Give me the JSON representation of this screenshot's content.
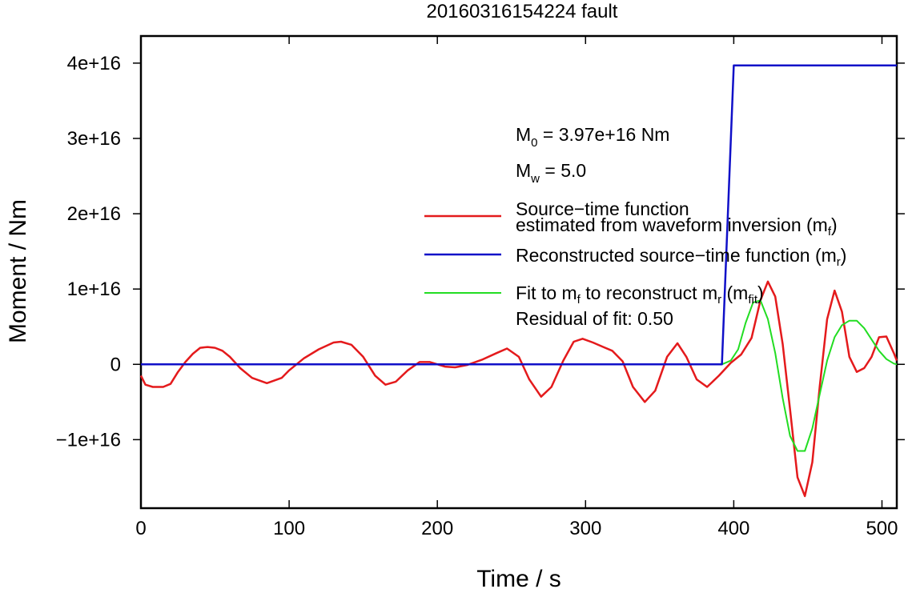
{
  "chart_data": {
    "type": "line",
    "title": "20160316154224 fault",
    "xlabel": "Time / s",
    "ylabel": "Moment / Nm",
    "xlim": [
      0,
      510
    ],
    "ylim": [
      -1.91e+16,
      4.36e+16
    ],
    "x_ticks": [
      0,
      100,
      200,
      300,
      400,
      500
    ],
    "x_tick_labels": [
      "0",
      "100",
      "200",
      "300",
      "400",
      "500"
    ],
    "y_ticks": [
      -1e+16,
      0,
      1e+16,
      2e+16,
      3e+16,
      4e+16
    ],
    "y_tick_labels": [
      "−1e+16",
      "0",
      "1e+16",
      "2e+16",
      "3e+16",
      "4e+16"
    ],
    "grid": false,
    "legend_position": "right",
    "annotations": {
      "m0_main": "M",
      "m0_sub": "0",
      "m0_rest": " = 3.97e+16 Nm",
      "mw_main": "M",
      "mw_sub": "w",
      "mw_rest": " = 5.0",
      "residual": "Residual of fit: 0.50"
    },
    "legend": [
      {
        "color": "#e41a1c",
        "line1": "Source−time function",
        "line2": "estimated from waveform inversion (m",
        "sub": "f",
        "close": ")"
      },
      {
        "color": "#1010c8",
        "line1": "Reconstructed source−time function (m",
        "sub": "r",
        "close": ")"
      },
      {
        "color": "#22dd22",
        "line1": "Fit to m",
        "sub": "f",
        "mid": " to reconstruct m",
        "sub2": "r",
        "mid2": " (m",
        "sub3": "fit",
        "close": ")"
      }
    ],
    "series": [
      {
        "color": "#e41a1c",
        "points": [
          [
            0,
            -1500000000000000.0
          ],
          [
            3,
            -2700000000000000.0
          ],
          [
            8,
            -3000000000000000.0
          ],
          [
            15,
            -3000000000000000.0
          ],
          [
            20,
            -2600000000000000.0
          ],
          [
            25,
            -1000000000000000.0
          ],
          [
            30,
            300000000000000.0
          ],
          [
            35,
            1400000000000000.0
          ],
          [
            40,
            2200000000000000.0
          ],
          [
            45,
            2300000000000000.0
          ],
          [
            50,
            2200000000000000.0
          ],
          [
            55,
            1800000000000000.0
          ],
          [
            60,
            1000000000000000.0
          ],
          [
            67,
            -500000000000000.0
          ],
          [
            75,
            -1800000000000000.0
          ],
          [
            85,
            -2500000000000000.0
          ],
          [
            95,
            -1800000000000000.0
          ],
          [
            100,
            -800000000000000.0
          ],
          [
            110,
            800000000000000.0
          ],
          [
            120,
            2000000000000000.0
          ],
          [
            130,
            2900000000000000.0
          ],
          [
            135,
            3000000000000000.0
          ],
          [
            142,
            2600000000000000.0
          ],
          [
            150,
            1000000000000000.0
          ],
          [
            158,
            -1500000000000000.0
          ],
          [
            165,
            -2700000000000000.0
          ],
          [
            172,
            -2300000000000000.0
          ],
          [
            180,
            -800000000000000.0
          ],
          [
            188,
            300000000000000.0
          ],
          [
            195,
            300000000000000.0
          ],
          [
            205,
            -300000000000000.0
          ],
          [
            212,
            -400000000000000.0
          ],
          [
            220,
            -100000000000000.0
          ],
          [
            230,
            600000000000000.0
          ],
          [
            240,
            1500000000000000.0
          ],
          [
            247,
            2100000000000000.0
          ],
          [
            255,
            1000000000000000.0
          ],
          [
            262,
            -2000000000000000.0
          ],
          [
            270,
            -4300000000000000.0
          ],
          [
            277,
            -3000000000000000.0
          ],
          [
            285,
            500000000000000.0
          ],
          [
            292,
            3000000000000000.0
          ],
          [
            298,
            3400000000000000.0
          ],
          [
            305,
            2900000000000000.0
          ],
          [
            312,
            2300000000000000.0
          ],
          [
            318,
            1800000000000000.0
          ],
          [
            325,
            400000000000000.0
          ],
          [
            332,
            -3000000000000000.0
          ],
          [
            340,
            -5000000000000000.0
          ],
          [
            347,
            -3500000000000000.0
          ],
          [
            355,
            1000000000000000.0
          ],
          [
            362,
            2800000000000000.0
          ],
          [
            368,
            1000000000000000.0
          ],
          [
            375,
            -2000000000000000.0
          ],
          [
            382,
            -3000000000000000.0
          ],
          [
            390,
            -1500000000000000.0
          ],
          [
            398,
            200000000000000.0
          ],
          [
            405,
            1300000000000000.0
          ],
          [
            412,
            3500000000000000.0
          ],
          [
            418,
            8500000000000000.0
          ],
          [
            423,
            1.1e+16
          ],
          [
            428,
            9000000000000000.0
          ],
          [
            433,
            2700000000000000.0
          ],
          [
            438,
            -6000000000000000.0
          ],
          [
            443,
            -1.5e+16
          ],
          [
            448,
            -1.75e+16
          ],
          [
            453,
            -1.3e+16
          ],
          [
            458,
            -3000000000000000.0
          ],
          [
            463,
            6000000000000000.0
          ],
          [
            468,
            9800000000000000.0
          ],
          [
            473,
            7000000000000000.0
          ],
          [
            478,
            1000000000000000.0
          ],
          [
            483,
            -1000000000000000.0
          ],
          [
            488,
            -500000000000000.0
          ],
          [
            493,
            1000000000000000.0
          ],
          [
            498,
            3600000000000000.0
          ],
          [
            503,
            3700000000000000.0
          ],
          [
            508,
            1500000000000000.0
          ],
          [
            510,
            500000000000000.0
          ]
        ]
      },
      {
        "color": "#22dd22",
        "points": [
          [
            392,
            0
          ],
          [
            398,
            500000000000000.0
          ],
          [
            403,
            2000000000000000.0
          ],
          [
            408,
            5500000000000000.0
          ],
          [
            413,
            8200000000000000.0
          ],
          [
            418,
            8500000000000000.0
          ],
          [
            423,
            6000000000000000.0
          ],
          [
            428,
            1500000000000000.0
          ],
          [
            433,
            -4500000000000000.0
          ],
          [
            438,
            -9500000000000000.0
          ],
          [
            443,
            -1.15e+16
          ],
          [
            448,
            -1.15e+16
          ],
          [
            453,
            -8500000000000000.0
          ],
          [
            458,
            -4000000000000000.0
          ],
          [
            463,
            500000000000000.0
          ],
          [
            468,
            3600000000000000.0
          ],
          [
            473,
            5200000000000000.0
          ],
          [
            478,
            5800000000000000.0
          ],
          [
            483,
            5800000000000000.0
          ],
          [
            488,
            4800000000000000.0
          ],
          [
            493,
            3300000000000000.0
          ],
          [
            498,
            1800000000000000.0
          ],
          [
            503,
            700000000000000.0
          ],
          [
            508,
            100000000000000.0
          ],
          [
            510,
            0
          ]
        ]
      },
      {
        "color": "#1010c8",
        "points": [
          [
            0,
            0
          ],
          [
            392,
            0
          ],
          [
            400,
            3.97e+16
          ],
          [
            510,
            3.97e+16
          ]
        ]
      }
    ]
  }
}
